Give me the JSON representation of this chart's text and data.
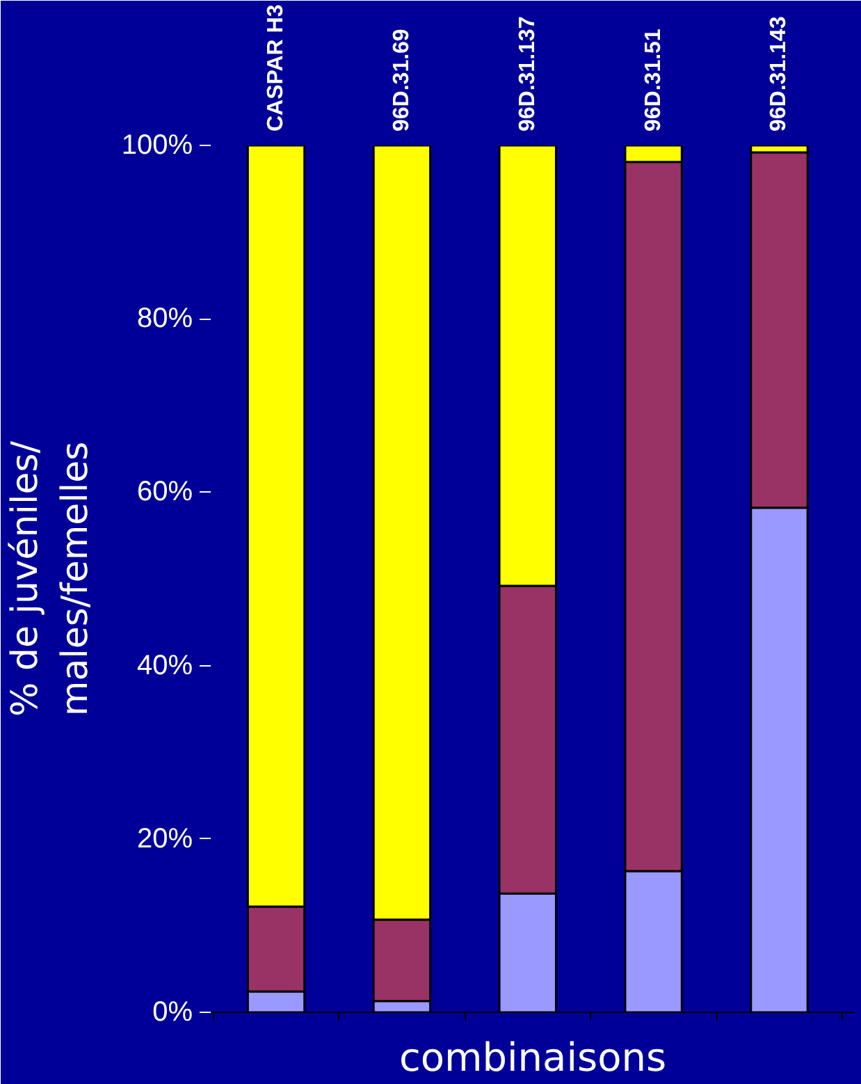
{
  "chart_data": {
    "type": "bar",
    "stacked": true,
    "categories": [
      "CASPAR H3",
      "96D.31.69",
      "96D.31.137",
      "96D.31.51",
      "96D.31.143"
    ],
    "series": [
      {
        "color": "#9999ff",
        "values": [
          2.4,
          1.3,
          13.7,
          16.3,
          58.2
        ]
      },
      {
        "color": "#993366",
        "values": [
          9.8,
          9.4,
          35.5,
          81.8,
          41.0
        ]
      },
      {
        "color": "#ffff00",
        "values": [
          87.8,
          89.3,
          50.8,
          1.9,
          0.8
        ]
      }
    ],
    "ylim": [
      0,
      100
    ],
    "yticks": [
      {
        "value": 0,
        "label": "0%"
      },
      {
        "value": 20,
        "label": "20%"
      },
      {
        "value": 40,
        "label": "40%"
      },
      {
        "value": 60,
        "label": "60%"
      },
      {
        "value": 80,
        "label": "80%"
      },
      {
        "value": 100,
        "label": "100%"
      }
    ],
    "xlabel": "combinaisons",
    "ylabel": "% de juvéniles/\nmales/femelles",
    "grid": false
  }
}
